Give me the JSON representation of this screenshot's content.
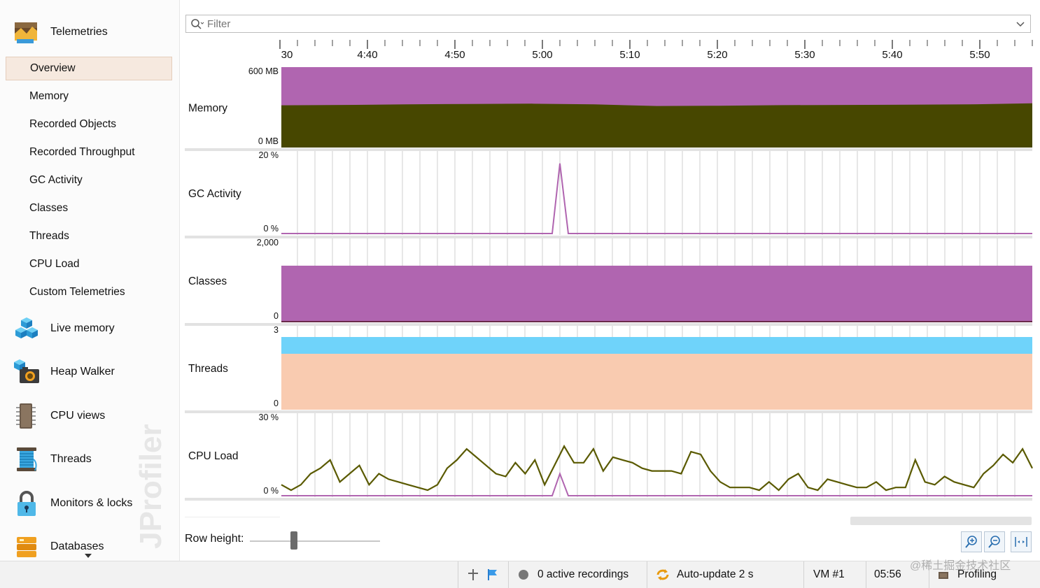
{
  "sidebar": {
    "telemetries_label": "Telemetries",
    "items": [
      {
        "label": "Overview",
        "active": true
      },
      {
        "label": "Memory"
      },
      {
        "label": "Recorded Objects"
      },
      {
        "label": "Recorded Throughput"
      },
      {
        "label": "GC Activity"
      },
      {
        "label": "Classes"
      },
      {
        "label": "Threads"
      },
      {
        "label": "CPU Load"
      },
      {
        "label": "Custom Telemetries"
      }
    ],
    "sections": {
      "live_memory": "Live memory",
      "heap_walker": "Heap Walker",
      "cpu_views": "CPU views",
      "threads": "Threads",
      "monitors_locks": "Monitors & locks",
      "databases": "Databases"
    },
    "watermark_text": "JProfiler"
  },
  "filter": {
    "placeholder": "Filter"
  },
  "timeline": {
    "ticks": [
      "30",
      "4:40",
      "4:50",
      "5:00",
      "5:10",
      "5:20",
      "5:30",
      "5:40",
      "5:50"
    ]
  },
  "rows": {
    "memory": {
      "label": "Memory",
      "max": "600 MB",
      "min": "0 MB"
    },
    "gc": {
      "label": "GC Activity",
      "max": "20 %",
      "min": "0 %"
    },
    "classes": {
      "label": "Classes",
      "max": "2,000",
      "min": "0"
    },
    "threads": {
      "label": "Threads",
      "max": "3",
      "min": "0"
    },
    "cpu": {
      "label": "CPU Load",
      "max": "30 %",
      "min": "0 %"
    }
  },
  "chart_data": [
    {
      "type": "area",
      "name": "Memory",
      "ylim": [
        0,
        600
      ],
      "unit": "MB",
      "series": [
        {
          "values": [
            600,
            600,
            600
          ]
        },
        {
          "values": [
            315,
            318,
            322,
            325,
            327,
            322,
            310,
            312,
            316,
            318,
            320,
            322,
            330
          ]
        }
      ]
    },
    {
      "type": "line",
      "name": "GC Activity",
      "ylim": [
        0,
        20
      ],
      "unit": "%",
      "x_peak": "5:02",
      "values_peak": 17
    },
    {
      "type": "area",
      "name": "Classes",
      "ylim": [
        0,
        2000
      ],
      "values": [
        1350
      ]
    },
    {
      "type": "area",
      "name": "Threads",
      "ylim": [
        0,
        3
      ],
      "values": [
        3,
        2
      ]
    },
    {
      "type": "line",
      "name": "CPU Load",
      "ylim": [
        0,
        30
      ],
      "unit": "%",
      "values": [
        4,
        2,
        4,
        8,
        10,
        13,
        5,
        8,
        11,
        4,
        8,
        6,
        5,
        4,
        3,
        2,
        4,
        10,
        13,
        17,
        14,
        11,
        8,
        7,
        12,
        8,
        13,
        4,
        11,
        18,
        12,
        12,
        17,
        9,
        14,
        13,
        12,
        10,
        9,
        9,
        9,
        8,
        16,
        15,
        9,
        5,
        3,
        3,
        3,
        2,
        5,
        2,
        6,
        8,
        3,
        2,
        6,
        5,
        4,
        3,
        3,
        5,
        2,
        3,
        3,
        13,
        5,
        4,
        7,
        5,
        4,
        3,
        8,
        11,
        15,
        12,
        17,
        10
      ]
    }
  ],
  "controls": {
    "row_height_label": "Row height:"
  },
  "status": {
    "recordings": "0 active recordings",
    "autoupdate": "Auto-update 2 s",
    "vm": "VM #1",
    "time": "05:56",
    "profiling": "Profiling"
  },
  "colors": {
    "purple": "#b065b0",
    "olive": "#474700",
    "blue": "#6fd3fa",
    "peach": "#f9cbb0",
    "cpu_line": "#5a5a00",
    "gc_line": "#b065b0"
  },
  "watermark_corner": "@稀土掘金技术社区"
}
